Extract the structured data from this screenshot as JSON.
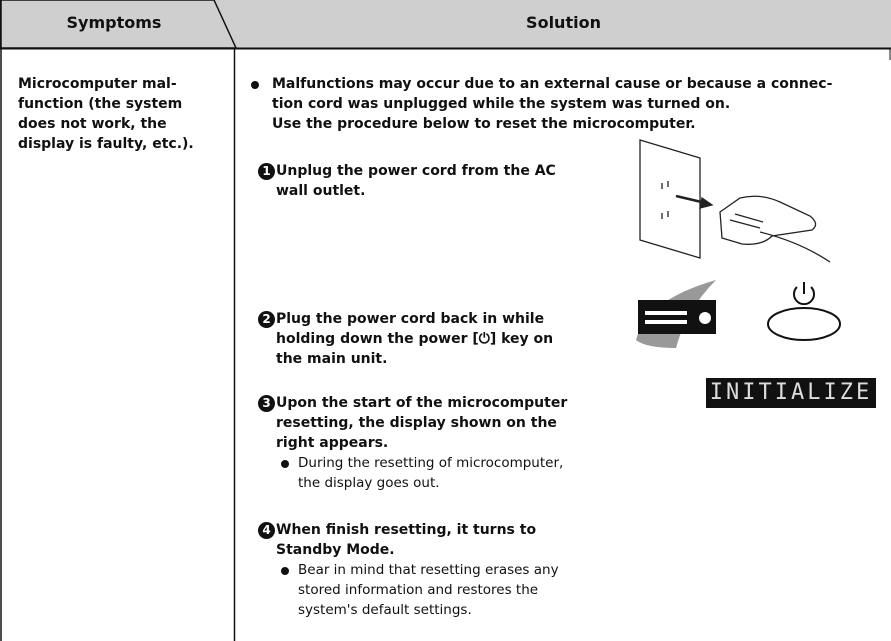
{
  "header": {
    "symptoms": "Symptoms",
    "solution": "Solution"
  },
  "symptom": {
    "lines": [
      "Microcomputer mal-",
      "function (the system",
      "does not work, the",
      "display is faulty, etc.)."
    ]
  },
  "solution": {
    "intro": [
      "Malfunctions may occur due to an external cause or because a connec-",
      "tion cord was unplugged while the system was turned on.",
      "Use the procedure below to reset the microcomputer."
    ],
    "steps": [
      {
        "number": "1",
        "lines": [
          "Unplug the power cord from the AC",
          "wall outlet."
        ],
        "notes": []
      },
      {
        "number": "2",
        "lines": [
          "Plug the power cord back in while",
          "holding down the power [⏻] key on",
          "the main unit."
        ],
        "notes": []
      },
      {
        "number": "3",
        "lines": [
          "Upon the start of the microcomputer",
          "resetting, the display shown on the",
          "right appears."
        ],
        "notes": [
          "During the resetting of microcomputer,",
          "the display goes out."
        ]
      },
      {
        "number": "4",
        "lines": [
          "When finish resetting, it turns to",
          "Standby Mode."
        ],
        "notes": [
          "Bear in mind that resetting erases any",
          "stored information and restores the",
          "system's default settings."
        ]
      }
    ],
    "display": "INITIALIZE"
  }
}
